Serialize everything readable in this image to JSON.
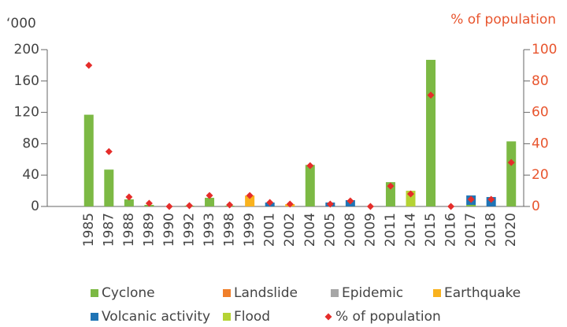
{
  "chart_data": {
    "type": "bar",
    "stacked": true,
    "y_label": "‘000",
    "y2_label": "% of population",
    "categories": [
      "1985",
      "1987",
      "1988",
      "1989",
      "1990",
      "1992",
      "1993",
      "1998",
      "1999",
      "2001",
      "2002",
      "2004",
      "2005",
      "2008",
      "2009",
      "2011",
      "2014",
      "2015",
      "2016",
      "2017",
      "2018",
      "2020"
    ],
    "ylim": [
      0,
      200
    ],
    "yticks": [
      0,
      40,
      80,
      120,
      160,
      200
    ],
    "y2lim": [
      0,
      100
    ],
    "y2ticks": [
      0,
      20,
      40,
      60,
      80,
      100
    ],
    "series": [
      {
        "name": "Cyclone",
        "color": "#7cb944",
        "values": [
          117,
          47,
          9,
          2,
          0,
          1,
          11,
          1,
          0,
          0,
          0,
          53,
          0,
          0,
          0,
          31,
          0,
          187,
          0,
          2,
          0,
          83
        ]
      },
      {
        "name": "Landslide",
        "color": "#f07f2a",
        "values": [
          0,
          0,
          0,
          0,
          0,
          0,
          0,
          0,
          0,
          0,
          0,
          0,
          0,
          0,
          0,
          0,
          0,
          0,
          0,
          0,
          0,
          0
        ]
      },
      {
        "name": "Epidemic",
        "color": "#a6a6a6",
        "values": [
          0,
          0,
          0,
          0,
          0,
          0,
          0,
          0,
          0,
          0,
          0,
          0,
          0,
          0,
          0,
          0,
          0,
          0,
          0,
          0,
          0,
          0
        ]
      },
      {
        "name": "Earthquake",
        "color": "#f9b21e",
        "values": [
          0,
          0,
          0,
          0,
          0,
          0,
          0,
          0,
          14,
          0,
          3,
          0,
          0,
          0,
          0,
          0,
          0,
          0,
          0,
          0,
          0,
          0
        ]
      },
      {
        "name": "Volcanic activity",
        "color": "#1f74b5",
        "values": [
          0,
          0,
          0,
          0,
          0,
          0,
          0,
          0,
          0,
          5,
          0,
          0,
          5,
          8,
          0,
          0,
          0,
          0,
          0,
          12,
          12,
          0
        ]
      },
      {
        "name": "Flood",
        "color": "#b5d334",
        "values": [
          0,
          0,
          0,
          0,
          0,
          0,
          0,
          0,
          0,
          0,
          0,
          0,
          0,
          0,
          0,
          0,
          20,
          0,
          0,
          0,
          0,
          0
        ]
      },
      {
        "name": "% of population",
        "color": "#e52d2a",
        "axis": "y2",
        "marker": "diamond",
        "values": [
          90,
          35,
          6,
          2,
          0,
          0.5,
          7,
          1,
          7,
          2.5,
          1.5,
          26,
          1.5,
          3.5,
          0,
          13,
          8,
          71,
          0,
          4.5,
          4.5,
          28
        ]
      }
    ]
  }
}
